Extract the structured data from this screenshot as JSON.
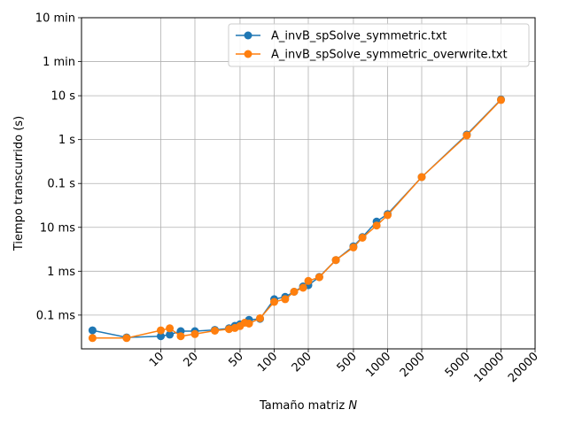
{
  "chart_data": {
    "type": "line",
    "x_scale": "log",
    "y_scale": "log",
    "xlabel": "Tamaño matriz",
    "xlabel_var": "N",
    "ylabel": "Tiempo transcurrido (s)",
    "xlim": [
      2.0,
      20000
    ],
    "ylim": [
      1.7e-05,
      600
    ],
    "grid": true,
    "legend_position": "top-right",
    "x_ticks": [
      {
        "value": 10,
        "label": "10"
      },
      {
        "value": 20,
        "label": "20"
      },
      {
        "value": 50,
        "label": "50"
      },
      {
        "value": 100,
        "label": "100"
      },
      {
        "value": 200,
        "label": "200"
      },
      {
        "value": 500,
        "label": "500"
      },
      {
        "value": 1000,
        "label": "1000"
      },
      {
        "value": 2000,
        "label": "2000"
      },
      {
        "value": 5000,
        "label": "5000"
      },
      {
        "value": 10000,
        "label": "10000"
      },
      {
        "value": 20000,
        "label": "20000"
      }
    ],
    "y_ticks": [
      {
        "value": 0.0001,
        "label": "0.1 ms"
      },
      {
        "value": 0.001,
        "label": "1 ms"
      },
      {
        "value": 0.01,
        "label": "10 ms"
      },
      {
        "value": 0.1,
        "label": "0.1 s"
      },
      {
        "value": 1,
        "label": "1 s"
      },
      {
        "value": 10,
        "label": "10 s"
      },
      {
        "value": 60,
        "label": "1 min"
      },
      {
        "value": 600,
        "label": "10 min"
      }
    ],
    "series": [
      {
        "name": "A_invB_spSolve_symmetric.txt",
        "color": "#1f77b4",
        "points": [
          [
            2.5,
            4.5e-05
          ],
          [
            5,
            3.1e-05
          ],
          [
            10,
            3.3e-05
          ],
          [
            12,
            3.6e-05
          ],
          [
            15,
            4.3e-05
          ],
          [
            20,
            4.3e-05
          ],
          [
            30,
            4.6e-05
          ],
          [
            40,
            5e-05
          ],
          [
            45,
            5.7e-05
          ],
          [
            50,
            6.2e-05
          ],
          [
            60,
            7.8e-05
          ],
          [
            75,
            8.2e-05
          ],
          [
            100,
            0.00023
          ],
          [
            125,
            0.00026
          ],
          [
            150,
            0.00034
          ],
          [
            180,
            0.00045
          ],
          [
            200,
            0.00048
          ],
          [
            250,
            0.00074
          ],
          [
            350,
            0.0018
          ],
          [
            500,
            0.0037
          ],
          [
            600,
            0.006
          ],
          [
            800,
            0.0135
          ],
          [
            1000,
            0.02
          ],
          [
            2000,
            0.14
          ],
          [
            5000,
            1.3
          ],
          [
            10000,
            8.2
          ]
        ]
      },
      {
        "name": "A_invB_spSolve_symmetric_overwrite.txt",
        "color": "#ff7f0e",
        "points": [
          [
            2.5,
            3e-05
          ],
          [
            5,
            3e-05
          ],
          [
            10,
            4.5e-05
          ],
          [
            12,
            5e-05
          ],
          [
            15,
            3.3e-05
          ],
          [
            20,
            3.7e-05
          ],
          [
            30,
            4.4e-05
          ],
          [
            40,
            4.8e-05
          ],
          [
            45,
            5.1e-05
          ],
          [
            50,
            5.6e-05
          ],
          [
            55,
            6.7e-05
          ],
          [
            60,
            6.4e-05
          ],
          [
            75,
            8.5e-05
          ],
          [
            100,
            0.0002
          ],
          [
            125,
            0.00023
          ],
          [
            150,
            0.00034
          ],
          [
            180,
            0.00042
          ],
          [
            200,
            0.0006
          ],
          [
            250,
            0.00073
          ],
          [
            350,
            0.0018
          ],
          [
            500,
            0.0035
          ],
          [
            600,
            0.0058
          ],
          [
            800,
            0.011
          ],
          [
            1000,
            0.019
          ],
          [
            2000,
            0.14
          ],
          [
            5000,
            1.25
          ],
          [
            10000,
            8.0
          ]
        ]
      }
    ]
  }
}
